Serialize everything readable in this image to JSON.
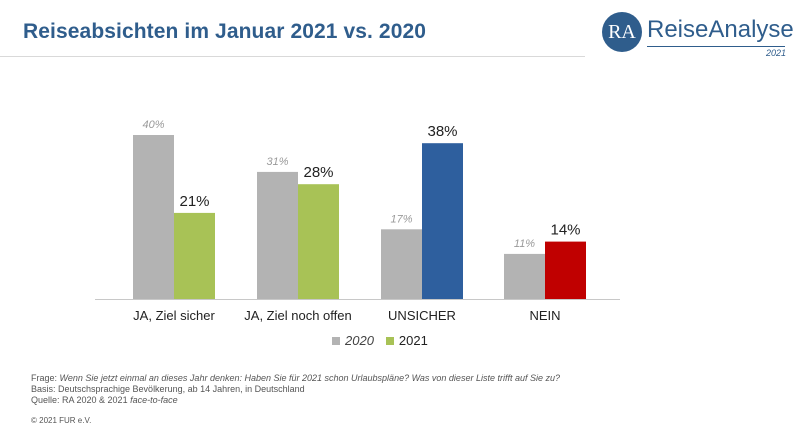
{
  "header": {
    "title": "Reiseabsichten im Januar 2021 vs. 2020"
  },
  "logo": {
    "mark": "RA",
    "name": "ReiseAnalyse",
    "year": "2021",
    "color": "#2f5d8c"
  },
  "chart_data": {
    "type": "bar",
    "title": "Reiseabsichten im Januar 2021 vs. 2020",
    "categories": [
      "JA, Ziel sicher",
      "JA, Ziel noch offen",
      "UNSICHER",
      "NEIN"
    ],
    "series": [
      {
        "name": "2020",
        "values": [
          40,
          31,
          17,
          11
        ],
        "labels": [
          "40%",
          "31%",
          "17%",
          "11%"
        ],
        "color": "#b3b3b3"
      },
      {
        "name": "2021",
        "values": [
          21,
          28,
          38,
          14
        ],
        "labels": [
          "21%",
          "28%",
          "38%",
          "14%"
        ],
        "colors": [
          "#a8c256",
          "#a8c256",
          "#2e5f9e",
          "#c00000"
        ]
      }
    ],
    "ylim": [
      0,
      42
    ],
    "grid": false,
    "legend_position": "bottom-center"
  },
  "legend": {
    "items": [
      {
        "label": "2020",
        "color": "#b3b3b3"
      },
      {
        "label": "2021",
        "color": "#a8c256"
      }
    ]
  },
  "footnotes": {
    "frage_label": "Frage:",
    "frage_text": "Wenn Sie jetzt einmal an dieses Jahr denken: Haben Sie für 2021 schon Urlaubspläne? Was von dieser Liste trifft auf Sie zu?",
    "basis": "Basis: Deutschsprachige Bevölkerung, ab 14 Jahren, in Deutschland",
    "quelle_label": "Quelle: RA 2020 & 2021 ",
    "quelle_method": "face-to-face",
    "copyright": "© 2021 FUR e.V."
  }
}
